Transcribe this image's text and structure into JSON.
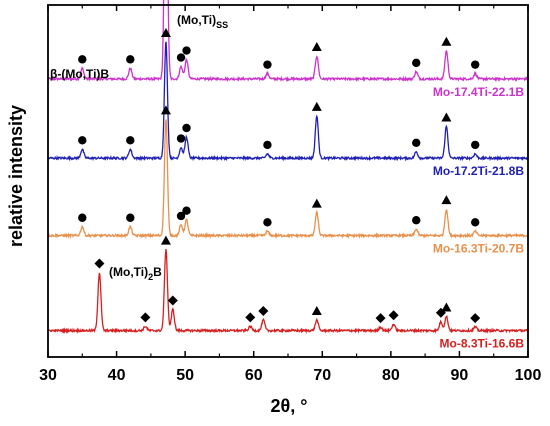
{
  "chart_data": {
    "type": "line",
    "title": "",
    "xlabel": "2θ, °",
    "ylabel": "relative intensity",
    "xlim": [
      30,
      100
    ],
    "xticks": [
      "30",
      "40",
      "50",
      "60",
      "70",
      "80",
      "90",
      "100"
    ],
    "grid": false,
    "annotations": {
      "ss_label": "(Mo,Ti)",
      "ss_sub": "SS",
      "beta_label": "β-(Mo,Ti)B",
      "boride_label": "(Mo,Ti)",
      "boride_sub": "2",
      "boride_suffix": "B"
    },
    "series": [
      {
        "name": "Mo-17.4Ti-22.1B",
        "color": "#cc33cc",
        "baseline": 0.79,
        "peaks": [
          [
            35,
            0.03
          ],
          [
            42,
            0.03
          ],
          [
            47.2,
            0.72
          ],
          [
            49.4,
            0.035
          ],
          [
            50.2,
            0.055
          ],
          [
            62,
            0.015
          ],
          [
            69.2,
            0.065
          ],
          [
            83.7,
            0.02
          ],
          [
            88.1,
            0.08
          ],
          [
            92.3,
            0.015
          ]
        ],
        "markers": {
          "circle": [
            35,
            42,
            49.4,
            50.2,
            62,
            83.7,
            92.3
          ],
          "triangle": [
            47.2,
            69.2,
            88.1
          ]
        }
      },
      {
        "name": "Mo-17.2Ti-21.8B",
        "color": "#1f1fb4",
        "baseline": 0.565,
        "peaks": [
          [
            35,
            0.025
          ],
          [
            42,
            0.025
          ],
          [
            47.2,
            0.33
          ],
          [
            49.4,
            0.03
          ],
          [
            50.2,
            0.06
          ],
          [
            62,
            0.012
          ],
          [
            69.2,
            0.12
          ],
          [
            83.7,
            0.018
          ],
          [
            88.1,
            0.09
          ],
          [
            92.3,
            0.012
          ]
        ],
        "markers": {
          "circle": [
            35,
            42,
            49.4,
            50.2,
            62,
            83.7,
            92.3
          ],
          "triangle": [
            47.2,
            69.2,
            88.1
          ]
        }
      },
      {
        "name": "Mo-16.3Ti-20.7B",
        "color": "#e8914c",
        "baseline": 0.345,
        "peaks": [
          [
            35,
            0.025
          ],
          [
            42,
            0.025
          ],
          [
            47.2,
            0.33
          ],
          [
            49.4,
            0.03
          ],
          [
            50.2,
            0.045
          ],
          [
            62,
            0.012
          ],
          [
            69.2,
            0.065
          ],
          [
            83.7,
            0.018
          ],
          [
            88.1,
            0.075
          ],
          [
            92.3,
            0.012
          ]
        ],
        "markers": {
          "circle": [
            35,
            42,
            49.4,
            50.2,
            62,
            83.7,
            92.3
          ],
          "triangle": [
            47.2,
            69.2,
            88.1
          ]
        }
      },
      {
        "name": "Mo-8.3Ti-16.6B",
        "color": "#d62020",
        "baseline": 0.075,
        "peaks": [
          [
            37.5,
            0.165
          ],
          [
            44.2,
            0.012
          ],
          [
            47.2,
            0.23
          ],
          [
            48.2,
            0.06
          ],
          [
            59.5,
            0.012
          ],
          [
            61.4,
            0.03
          ],
          [
            69.2,
            0.03
          ],
          [
            78.5,
            0.01
          ],
          [
            80.4,
            0.018
          ],
          [
            87.3,
            0.025
          ],
          [
            88.1,
            0.04
          ],
          [
            92.3,
            0.01
          ]
        ],
        "markers": {
          "diamond": [
            37.5,
            44.2,
            48.2,
            59.5,
            61.4,
            78.5,
            80.4,
            87.3,
            92.3
          ],
          "triangle": [
            47.2,
            69.2,
            88.1
          ]
        }
      }
    ]
  }
}
